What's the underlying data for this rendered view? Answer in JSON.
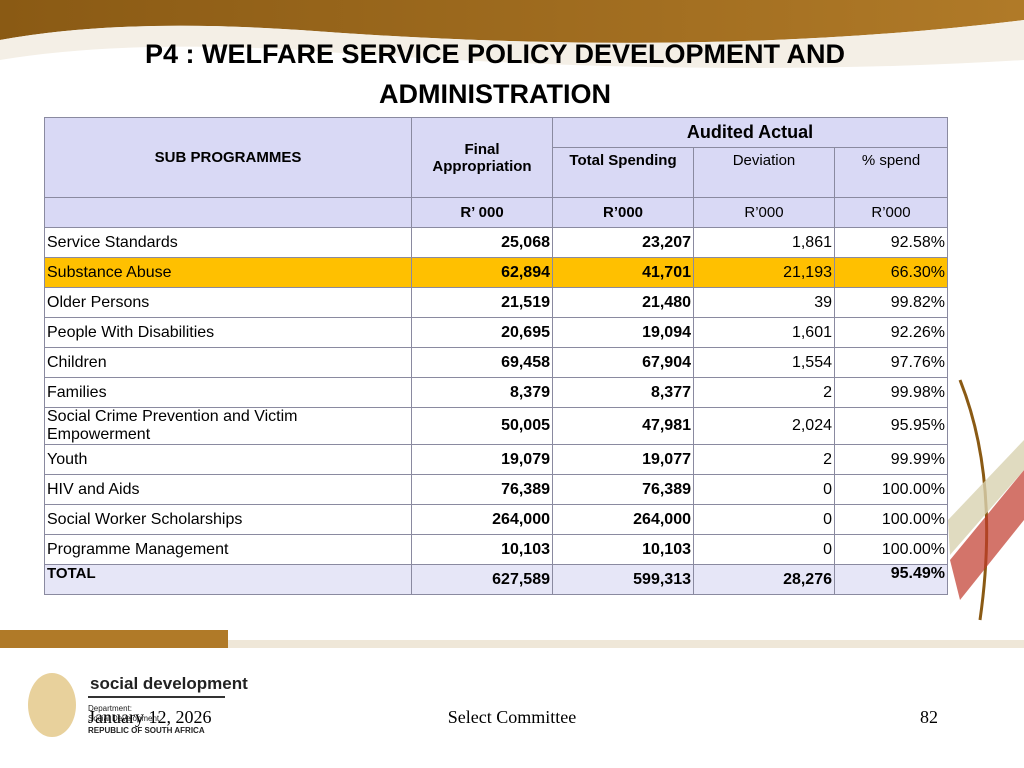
{
  "header": {
    "title": "P4 : WELFARE SERVICE POLICY DEVELOPMENT AND ADMINISTRATION"
  },
  "table": {
    "headers": {
      "sub_programmes": "SUB PROGRAMMES",
      "final": "Final Appropriation",
      "audited": "Audited Actual",
      "total_spending": "Total Spending",
      "deviation": "Deviation",
      "pct_spend": "% spend",
      "units": [
        "R’ 000",
        "R’000",
        "R’000",
        "R’000"
      ]
    },
    "rows": [
      [
        "Service Standards",
        "25,068",
        "23,207",
        "1,861",
        "92.58%"
      ],
      [
        "Substance Abuse",
        "62,894",
        "41,701",
        "21,193",
        "66.30%"
      ],
      [
        "Older Persons",
        "21,519",
        "21,480",
        "39",
        "99.82%"
      ],
      [
        "People With Disabilities",
        "20,695",
        "19,094",
        "1,601",
        "92.26%"
      ],
      [
        "Children",
        "69,458",
        "67,904",
        "1,554",
        "97.76%"
      ],
      [
        "Families",
        "8,379",
        "8,377",
        "2",
        "99.98%"
      ],
      [
        "Social Crime Prevention and Victim Empowerment",
        "50,005",
        "47,981",
        "2,024",
        "95.95%"
      ],
      [
        "Youth",
        "19,079",
        "19,077",
        "2",
        "99.99%"
      ],
      [
        "HIV and Aids",
        "76,389",
        "76,389",
        "0",
        "100.00%"
      ],
      [
        "Social Worker Scholarships",
        "264,000",
        "264,000",
        "0",
        "100.00%"
      ],
      [
        "Programme Management",
        "10,103",
        "10,103",
        "0",
        "100.00%"
      ],
      [
        "TOTAL",
        "627,589",
        "599,313",
        "28,276",
        "95.49%"
      ]
    ]
  },
  "logo": {
    "name": "social development",
    "line1": "Department:",
    "line2": "Social Development",
    "line3": "REPUBLIC OF SOUTH AFRICA"
  },
  "footer": {
    "date": "January 12, 2026",
    "center": "Select Committee",
    "page": "82"
  }
}
